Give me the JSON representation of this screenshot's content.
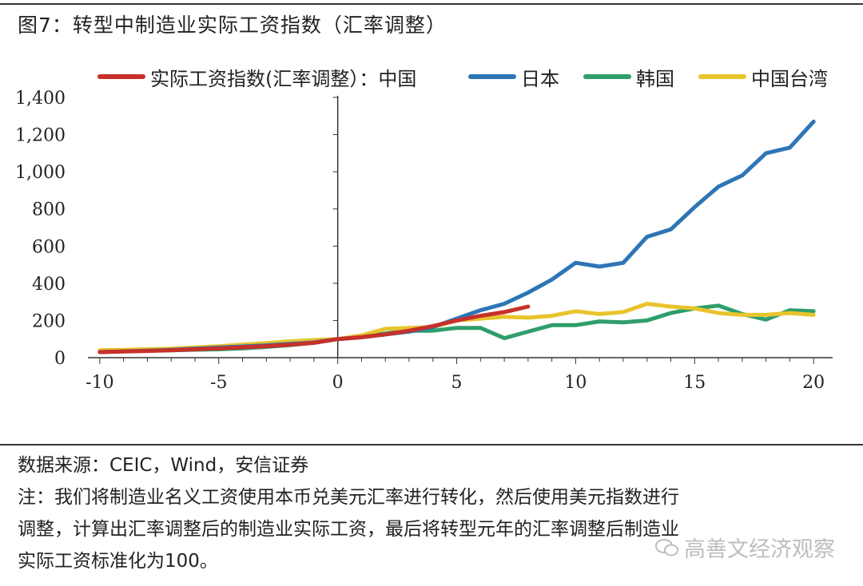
{
  "title": "图7：转型中制造业实际工资指数（汇率调整）",
  "source": "数据来源：CEIC，Wind，安信证券",
  "note_lines": [
    "注：我们将制造业名义工资使用本币兑美元汇率进行转化，然后使用美元指数进行",
    "调整，计算出汇率调整后的制造业实际工资，最后将转型元年的汇率调整后制造业",
    "实际工资标准化为100。"
  ],
  "watermark": "高善文经济观察",
  "chart_data": {
    "type": "line",
    "title": "图7：转型中制造业实际工资指数（汇率调整）",
    "xlabel": "",
    "ylabel": "",
    "xlim": [
      -10.5,
      20.8
    ],
    "ylim": [
      0,
      1400
    ],
    "x_ticks": [
      -10,
      -5,
      0,
      5,
      10,
      15,
      20
    ],
    "y_ticks": [
      0,
      200,
      400,
      600,
      800,
      1000,
      1200,
      1400
    ],
    "x_tick_labels": [
      "-10",
      "-5",
      "0",
      "5",
      "10",
      "15",
      "20"
    ],
    "y_tick_labels": [
      "0",
      "200",
      "400",
      "600",
      "800",
      "1,000",
      "1,200",
      "1,400"
    ],
    "grid": false,
    "legend_position": "top",
    "series": [
      {
        "name": "实际工资指数(汇率调整）：中国",
        "color": "#c8302a",
        "x": [
          -10,
          -9,
          -8,
          -7,
          -6,
          -5,
          -4,
          -3,
          -2,
          -1,
          0,
          1,
          2,
          3,
          4,
          5,
          6,
          7,
          8
        ],
        "y": [
          30,
          33,
          36,
          40,
          45,
          50,
          56,
          62,
          70,
          80,
          100,
          110,
          125,
          145,
          170,
          200,
          225,
          245,
          275
        ]
      },
      {
        "name": "日本",
        "color": "#2e75b6",
        "x": [
          -10,
          -9,
          -8,
          -7,
          -6,
          -5,
          -4,
          -3,
          -2,
          -1,
          0,
          1,
          2,
          3,
          4,
          5,
          6,
          7,
          8,
          9,
          10,
          11,
          12,
          13,
          14,
          15,
          16,
          17,
          18,
          19,
          20
        ],
        "y": [
          30,
          34,
          38,
          42,
          48,
          54,
          60,
          66,
          74,
          82,
          100,
          110,
          125,
          140,
          165,
          210,
          255,
          290,
          350,
          420,
          510,
          490,
          510,
          650,
          690,
          810,
          920,
          980,
          1100,
          1130,
          1270
        ]
      },
      {
        "name": "韩国",
        "color": "#2e9e6b",
        "x": [
          -10,
          -9,
          -8,
          -7,
          -6,
          -5,
          -4,
          -3,
          -2,
          -1,
          0,
          1,
          2,
          3,
          4,
          5,
          6,
          7,
          8,
          9,
          10,
          11,
          12,
          13,
          14,
          15,
          16,
          17,
          18,
          19,
          20
        ],
        "y": [
          35,
          37,
          38,
          40,
          43,
          45,
          50,
          58,
          68,
          80,
          100,
          110,
          130,
          145,
          145,
          160,
          160,
          105,
          140,
          175,
          175,
          195,
          190,
          200,
          240,
          265,
          280,
          235,
          205,
          255,
          250
        ]
      },
      {
        "name": "中国台湾",
        "color": "#e8c42c",
        "x": [
          -10,
          -9,
          -8,
          -7,
          -6,
          -5,
          -4,
          -3,
          -2,
          -1,
          0,
          1,
          2,
          3,
          4,
          5,
          6,
          7,
          8,
          9,
          10,
          11,
          12,
          13,
          14,
          15,
          16,
          17,
          18,
          19,
          20
        ],
        "y": [
          40,
          42,
          45,
          48,
          55,
          62,
          70,
          78,
          88,
          95,
          100,
          120,
          155,
          160,
          165,
          200,
          210,
          220,
          215,
          225,
          250,
          235,
          245,
          290,
          275,
          265,
          240,
          230,
          230,
          240,
          230
        ]
      }
    ]
  }
}
